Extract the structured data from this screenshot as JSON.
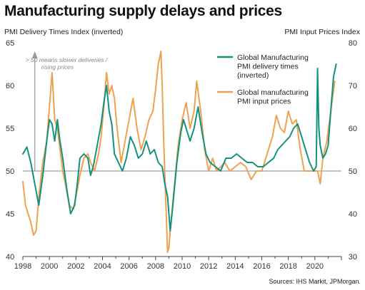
{
  "chart_data": {
    "type": "line",
    "title": "Manufacturing supply delays and prices",
    "left_axis_title": "PMI Delivery Times Index (inverted)",
    "right_axis_title": "PMI Input Prices Index",
    "left_axis": {
      "ylim": [
        40,
        65
      ],
      "ticks": [
        "40",
        "45",
        "50",
        "55",
        "60",
        "65"
      ]
    },
    "right_axis": {
      "ylim": [
        30,
        80
      ],
      "ticks": [
        "30",
        "40",
        "50",
        "60",
        "70",
        "80"
      ]
    },
    "x_axis": {
      "xlim": [
        1998,
        2022
      ],
      "ticks": [
        "1998",
        "2000",
        "2002",
        "2004",
        "2006",
        "2008",
        "2010",
        "2012",
        "2014",
        "2016",
        "2018",
        "2020"
      ]
    },
    "reference_line": {
      "axis": "left",
      "value": 50
    },
    "annotation": {
      "lines": [
        "> 50 means slower deliveries /",
        "rising prices"
      ],
      "arrow_x": 1998.9,
      "arrow_y_from": 50,
      "arrow_y_to": 64
    },
    "legend_position": "top-right",
    "grid": false,
    "source": "Sources: IHS Markit, JPMorgan.",
    "series": [
      {
        "name": "Global Manufacturing PMI delivery times (inverted)",
        "axis": "left",
        "color": "#13917f",
        "x": [
          1998.0,
          1998.3,
          1998.6,
          1998.9,
          1999.2,
          1999.5,
          1999.8,
          2000.0,
          2000.2,
          2000.4,
          2000.6,
          2000.8,
          2001.0,
          2001.3,
          2001.6,
          2001.9,
          2002.1,
          2002.3,
          2002.6,
          2002.9,
          2003.1,
          2003.3,
          2003.6,
          2003.9,
          2004.1,
          2004.3,
          2004.5,
          2004.7,
          2004.9,
          2005.2,
          2005.5,
          2005.8,
          2006.1,
          2006.4,
          2006.7,
          2007.0,
          2007.3,
          2007.6,
          2007.9,
          2008.2,
          2008.5,
          2008.7,
          2008.9,
          2009.1,
          2009.3,
          2009.6,
          2009.9,
          2010.1,
          2010.3,
          2010.6,
          2010.9,
          2011.2,
          2011.5,
          2011.8,
          2012.1,
          2012.5,
          2012.9,
          2013.3,
          2013.7,
          2014.1,
          2014.5,
          2014.9,
          2015.3,
          2015.7,
          2016.1,
          2016.5,
          2016.9,
          2017.2,
          2017.5,
          2017.8,
          2018.1,
          2018.4,
          2018.7,
          2019.0,
          2019.3,
          2019.6,
          2019.9,
          2020.1,
          2020.2,
          2020.3,
          2020.4,
          2020.6,
          2020.8,
          2021.0,
          2021.2,
          2021.4,
          2021.6
        ],
        "values": [
          52.0,
          52.8,
          51.0,
          48.5,
          46.0,
          49.5,
          53.5,
          56.0,
          55.5,
          53.5,
          56.0,
          53.5,
          51.5,
          48.0,
          45.0,
          46.0,
          48.5,
          51.5,
          52.0,
          51.5,
          49.5,
          50.5,
          53.0,
          55.5,
          58.0,
          60.0,
          57.0,
          55.5,
          52.0,
          51.0,
          50.0,
          51.5,
          54.0,
          53.0,
          51.5,
          52.0,
          53.5,
          52.0,
          52.5,
          51.0,
          50.5,
          48.5,
          47.0,
          43.0,
          46.0,
          51.0,
          54.5,
          56.0,
          55.0,
          53.5,
          55.0,
          57.5,
          54.5,
          52.0,
          51.0,
          50.5,
          50.0,
          51.5,
          51.5,
          52.0,
          51.5,
          51.0,
          51.0,
          50.5,
          50.5,
          51.0,
          51.5,
          52.5,
          53.0,
          53.5,
          54.0,
          55.0,
          55.5,
          54.0,
          52.5,
          51.0,
          50.0,
          50.5,
          62.0,
          55.0,
          53.0,
          51.5,
          52.0,
          53.0,
          57.0,
          61.0,
          62.5
        ]
      },
      {
        "name": "Global manufacturing PMI input prices",
        "axis": "right",
        "color": "#f0a050",
        "x": [
          1998.0,
          1998.2,
          1998.4,
          1998.6,
          1998.8,
          1999.0,
          1999.2,
          1999.5,
          1999.8,
          2000.0,
          2000.2,
          2000.4,
          2000.6,
          2000.8,
          2001.0,
          2001.2,
          2001.5,
          2001.8,
          2002.0,
          2002.3,
          2002.6,
          2002.9,
          2003.1,
          2003.4,
          2003.7,
          2003.9,
          2004.1,
          2004.3,
          2004.5,
          2004.7,
          2004.9,
          2005.1,
          2005.4,
          2005.7,
          2006.0,
          2006.3,
          2006.6,
          2006.9,
          2007.2,
          2007.5,
          2007.8,
          2008.0,
          2008.2,
          2008.4,
          2008.5,
          2008.6,
          2008.8,
          2008.9,
          2009.0,
          2009.1,
          2009.4,
          2009.7,
          2010.0,
          2010.3,
          2010.6,
          2010.9,
          2011.1,
          2011.4,
          2011.7,
          2012.0,
          2012.3,
          2012.6,
          2012.9,
          2013.2,
          2013.6,
          2014.0,
          2014.4,
          2014.8,
          2015.2,
          2015.6,
          2016.0,
          2016.4,
          2016.8,
          2017.1,
          2017.4,
          2017.7,
          2018.0,
          2018.3,
          2018.6,
          2018.9,
          2019.2,
          2019.6,
          2020.0,
          2020.2,
          2020.4,
          2020.6,
          2020.9,
          2021.2,
          2021.5
        ],
        "values": [
          47.5,
          42.0,
          40.0,
          38.0,
          35.0,
          36.0,
          44.0,
          52.0,
          57.0,
          65.0,
          73.0,
          62.0,
          60.0,
          55.0,
          50.0,
          47.0,
          42.0,
          41.0,
          44.0,
          49.0,
          53.0,
          54.0,
          52.0,
          50.0,
          54.0,
          58.0,
          65.0,
          73.0,
          68.0,
          70.0,
          67.0,
          60.0,
          52.0,
          57.0,
          62.0,
          67.0,
          60.0,
          55.0,
          58.0,
          62.0,
          64.0,
          69.0,
          75.0,
          78.0,
          70.0,
          58.0,
          40.0,
          31.0,
          32.0,
          36.0,
          46.0,
          56.0,
          62.0,
          66.0,
          60.0,
          64.0,
          71.0,
          64.0,
          55.0,
          50.0,
          53.0,
          50.0,
          51.0,
          52.0,
          50.0,
          51.0,
          52.0,
          51.0,
          48.0,
          50.0,
          50.0,
          54.0,
          58.0,
          63.0,
          60.0,
          59.0,
          64.0,
          61.0,
          62.0,
          55.0,
          50.0,
          50.0,
          50.0,
          50.0,
          47.0,
          53.0,
          57.0,
          64.0,
          71.0
        ]
      }
    ]
  }
}
